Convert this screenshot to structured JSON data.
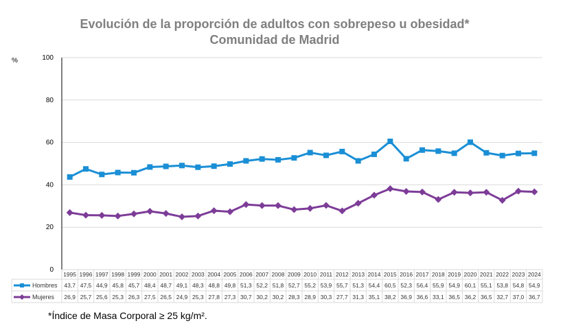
{
  "chart_data": {
    "type": "line",
    "title": "Evolución de la proporción de adultos con sobrepeso u obesidad*",
    "subtitle": "Comunidad de Madrid",
    "ylabel": "%",
    "ylim": [
      0,
      100
    ],
    "yticks": [
      0,
      20,
      40,
      60,
      80,
      100
    ],
    "grid": true,
    "legend": "data-table-left",
    "categories": [
      "1995",
      "1996",
      "1997",
      "1998",
      "1999",
      "2000",
      "2001",
      "2002",
      "2003",
      "2004",
      "2005",
      "2006",
      "2007",
      "2008",
      "2009",
      "2010",
      "2011",
      "2012",
      "2013",
      "2014",
      "2015",
      "2016",
      "2017",
      "2018",
      "2019",
      "2020",
      "2021",
      "2022",
      "2023",
      "2024"
    ],
    "series": [
      {
        "name": "Hombres",
        "color": "#1a8fd6",
        "marker": "square",
        "values": [
          43.7,
          47.5,
          44.9,
          45.8,
          45.7,
          48.4,
          48.7,
          49.1,
          48.3,
          48.8,
          49.8,
          51.3,
          52.2,
          51.8,
          52.7,
          55.2,
          53.9,
          55.7,
          51.3,
          54.4,
          60.5,
          52.3,
          56.4,
          55.9,
          54.9,
          60.1,
          55.1,
          53.8,
          54.8,
          54.9
        ]
      },
      {
        "name": "Mujeres",
        "color": "#7d3c98",
        "marker": "diamond",
        "values": [
          26.9,
          25.7,
          25.6,
          25.3,
          26.3,
          27.5,
          26.5,
          24.9,
          25.3,
          27.8,
          27.3,
          30.7,
          30.2,
          30.2,
          28.3,
          28.9,
          30.3,
          27.7,
          31.3,
          35.1,
          38.2,
          36.9,
          36.6,
          33.1,
          36.5,
          36.2,
          36.5,
          32.7,
          37.0,
          36.7
        ]
      }
    ],
    "footnote": "*Índice de Masa Corporal ≥ 25 kg/m²."
  }
}
